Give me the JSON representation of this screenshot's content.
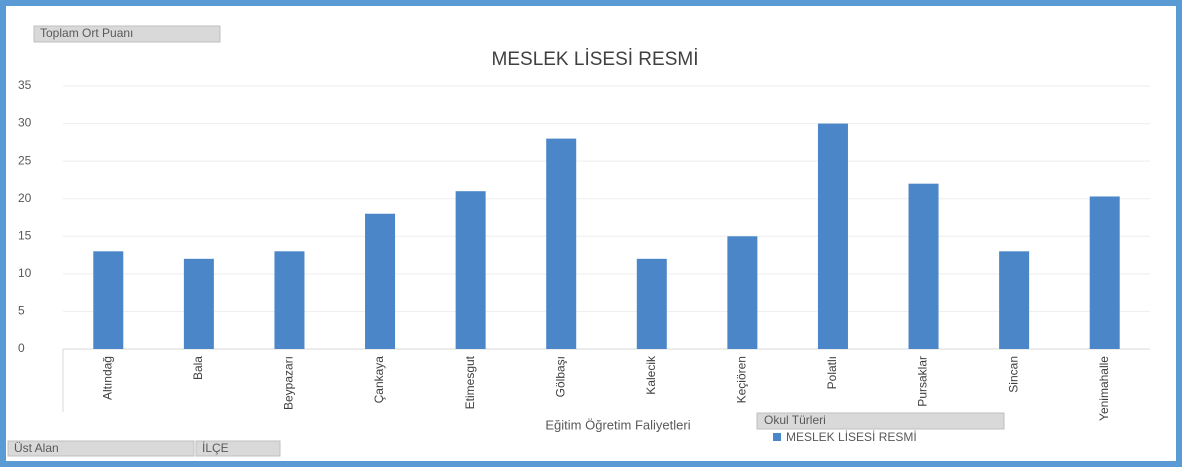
{
  "chart_data": {
    "type": "bar",
    "title": "MESLEK LİSESİ RESMİ",
    "x_label": "Eğitim Öğretim Faliyetleri",
    "field_buttons": {
      "values_field": "Toplam Ort Puanı",
      "filter1": "Üst Alan",
      "filter2": "İLÇE",
      "legend_field": "Okul Türleri"
    },
    "categories": [
      "Altındağ",
      "Bala",
      "Beypazarı",
      "Çankaya",
      "Etimesgut",
      "Gölbaşı",
      "Kalecik",
      "Keçiören",
      "Polatlı",
      "Pursaklar",
      "Sincan",
      "Yenimahalle"
    ],
    "series": [
      {
        "name": "MESLEK LİSESİ RESMİ",
        "color": "#4a86c8",
        "values": [
          13,
          12,
          13,
          18,
          21,
          28,
          12,
          15,
          30,
          22,
          13,
          20.3
        ]
      }
    ],
    "ylim": [
      0,
      35
    ],
    "yticks": [
      0,
      5,
      10,
      15,
      20,
      25,
      30,
      35
    ],
    "grid": true
  }
}
